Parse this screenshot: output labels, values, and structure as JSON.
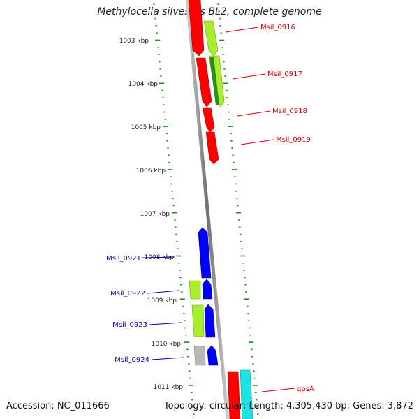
{
  "title": "Methylocella silvestris BL2, complete genome",
  "footer": {
    "accession": "Accession: NC_011666",
    "topology": "Topology: circular; Length: 4,305,430 bp; Genes: 3,872"
  },
  "ruler": {
    "labels": [
      "1003 kbp",
      "1004 kbp",
      "1005 kbp",
      "1006 kbp",
      "1007 kbp",
      "1008 kbp",
      "1009 kbp",
      "1010 kbp",
      "1011 kbp"
    ]
  },
  "genes": {
    "right": [
      "Msil_0916",
      "Msil_0917",
      "Msil_0918",
      "Msil_0919",
      "gpsA"
    ],
    "left": [
      "Msil_0921",
      "Msil_0922",
      "Msil_0923",
      "Msil_0924"
    ]
  },
  "colors": {
    "red": "#ff0000",
    "blue": "#0000ff",
    "green_light": "#a6ef2a",
    "green_dark": "#2f8c1a",
    "gray": "#b8b8b8",
    "cyan": "#19e5e5",
    "backbone": "#888888",
    "tick": "#1b8a1b",
    "label_red": "#d40000",
    "label_blue": "#0000b4"
  }
}
